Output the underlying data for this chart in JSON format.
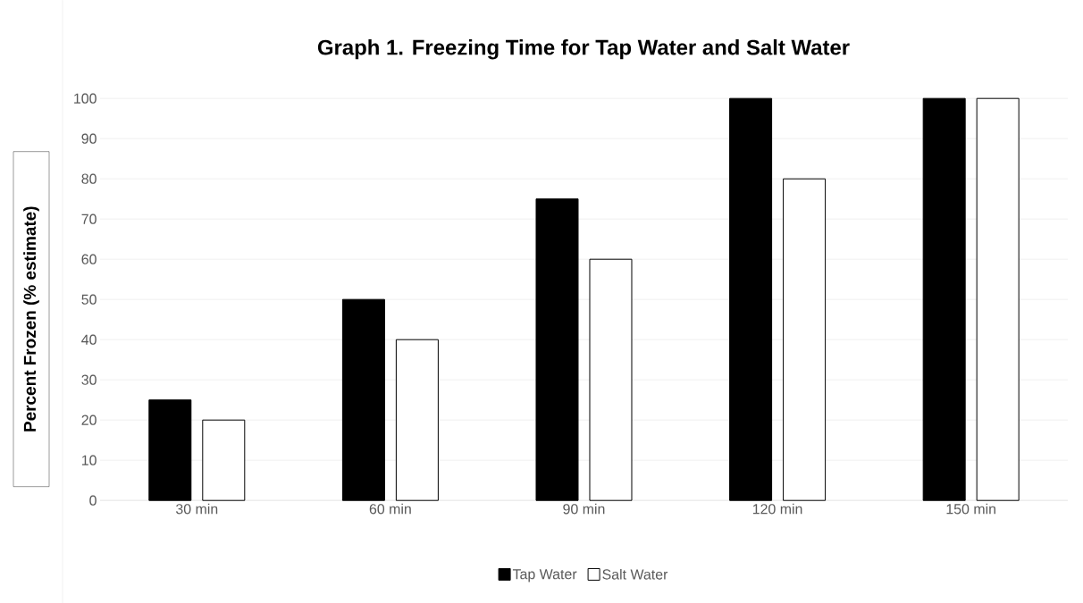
{
  "chart_data": {
    "type": "bar",
    "title": "Graph 1. Freezing Time for Tap Water and Salt Water",
    "ylabel": "Percent Frozen (% estimate)",
    "categories": [
      "30 min",
      "60 min",
      "90 min",
      "120 min",
      "150 min"
    ],
    "series": [
      {
        "name": "Tap Water",
        "color": "#000000",
        "values": [
          25,
          50,
          75,
          100,
          100
        ]
      },
      {
        "name": "Salt Water",
        "color": "#ffffff",
        "values": [
          20,
          40,
          60,
          80,
          100
        ]
      }
    ],
    "ylim": [
      0,
      100
    ],
    "yticks": [
      0,
      10,
      20,
      30,
      40,
      50,
      60,
      70,
      80,
      90,
      100
    ],
    "grid": "y",
    "legend": "bottom"
  }
}
